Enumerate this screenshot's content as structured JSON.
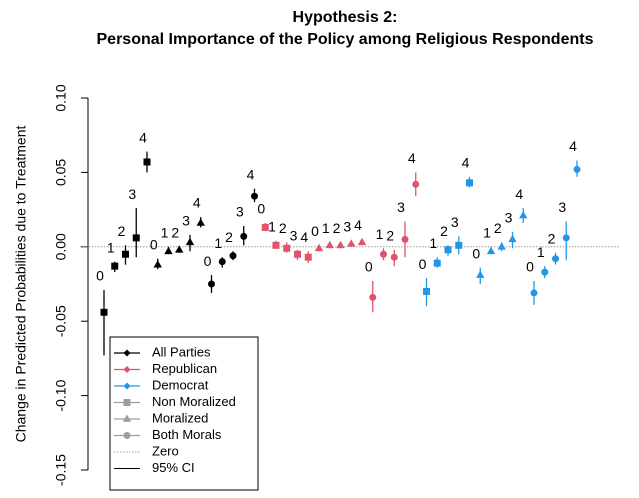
{
  "chart_data": {
    "type": "errorbar",
    "title": [
      "Hypothesis 2:",
      "Personal Importance of the Policy among Religious Respondents"
    ],
    "ylabel": "Change in Predicted Probabilities due to Treatment",
    "ylim": [
      -0.15,
      0.1
    ],
    "yticks": [
      {
        "value": -0.15,
        "label": "-0.15"
      },
      {
        "value": -0.1,
        "label": "-0.10"
      },
      {
        "value": -0.05,
        "label": "-0.05"
      },
      {
        "value": 0,
        "label": "0.00"
      },
      {
        "value": 0.05,
        "label": "0.05"
      },
      {
        "value": 0.1,
        "label": "0.10"
      }
    ],
    "zero_line": 0,
    "categories": [
      "0",
      "1",
      "2",
      "3",
      "4"
    ],
    "parties": [
      {
        "name": "All Parties",
        "color": "#000000"
      },
      {
        "name": "Republican",
        "color": "#DF536B"
      },
      {
        "name": "Democrat",
        "color": "#2297E6"
      }
    ],
    "shapes": [
      {
        "name": "Non Moralized",
        "marker": "square"
      },
      {
        "name": "Moralized",
        "marker": "triangle"
      },
      {
        "name": "Both Morals",
        "marker": "circle"
      }
    ],
    "legend_gray": "#9E9E9E",
    "zero_label": "Zero",
    "ci_label": "95% CI",
    "groups": [
      {
        "party": 0,
        "shape": 0,
        "values": [
          -0.044,
          -0.013,
          -0.005,
          0.006,
          0.057
        ],
        "lower": [
          -0.073,
          -0.017,
          -0.012,
          -0.007,
          0.05
        ],
        "upper": [
          -0.029,
          -0.01,
          0.001,
          0.026,
          0.064
        ]
      },
      {
        "party": 0,
        "shape": 1,
        "values": [
          -0.012,
          -0.003,
          -0.002,
          0.003,
          0.016
        ],
        "lower": [
          -0.015,
          -0.005,
          -0.004,
          -0.003,
          0.013
        ],
        "upper": [
          -0.008,
          0.0,
          0.0,
          0.008,
          0.02
        ]
      },
      {
        "party": 0,
        "shape": 2,
        "values": [
          -0.025,
          -0.01,
          -0.006,
          0.007,
          0.034
        ],
        "lower": [
          -0.031,
          -0.014,
          -0.009,
          0.001,
          0.03
        ],
        "upper": [
          -0.019,
          -0.007,
          -0.003,
          0.014,
          0.039
        ]
      },
      {
        "party": 1,
        "shape": 0,
        "values": [
          0.013,
          0.001,
          -0.001,
          -0.005,
          -0.007
        ],
        "lower": [
          0.011,
          -0.001,
          -0.004,
          -0.009,
          -0.011
        ],
        "upper": [
          0.016,
          0.004,
          0.003,
          -0.002,
          -0.003
        ]
      },
      {
        "party": 1,
        "shape": 1,
        "values": [
          -0.001,
          0.001,
          0.001,
          0.002,
          0.003
        ],
        "lower": [
          -0.003,
          -0.001,
          -0.001,
          0.0,
          0.001
        ],
        "upper": [
          0.001,
          0.003,
          0.003,
          0.004,
          0.005
        ]
      },
      {
        "party": 1,
        "shape": 2,
        "values": [
          -0.034,
          -0.005,
          -0.007,
          0.005,
          0.042
        ],
        "lower": [
          -0.044,
          -0.009,
          -0.013,
          -0.007,
          0.034
        ],
        "upper": [
          -0.023,
          -0.001,
          -0.002,
          0.017,
          0.05
        ]
      },
      {
        "party": 2,
        "shape": 0,
        "values": [
          -0.03,
          -0.011,
          -0.002,
          0.001,
          0.043
        ],
        "lower": [
          -0.04,
          -0.014,
          -0.006,
          -0.005,
          0.04
        ],
        "upper": [
          -0.021,
          -0.007,
          0.001,
          0.007,
          0.047
        ]
      },
      {
        "party": 2,
        "shape": 1,
        "values": [
          -0.019,
          -0.003,
          0.0,
          0.005,
          0.021
        ],
        "lower": [
          -0.025,
          -0.005,
          -0.003,
          -0.001,
          0.016
        ],
        "upper": [
          -0.014,
          0.0,
          0.003,
          0.01,
          0.026
        ]
      },
      {
        "party": 2,
        "shape": 2,
        "values": [
          -0.031,
          -0.017,
          -0.008,
          0.006,
          0.052
        ],
        "lower": [
          -0.039,
          -0.021,
          -0.012,
          -0.009,
          0.047
        ],
        "upper": [
          -0.023,
          -0.013,
          -0.004,
          0.017,
          0.058
        ]
      }
    ]
  }
}
